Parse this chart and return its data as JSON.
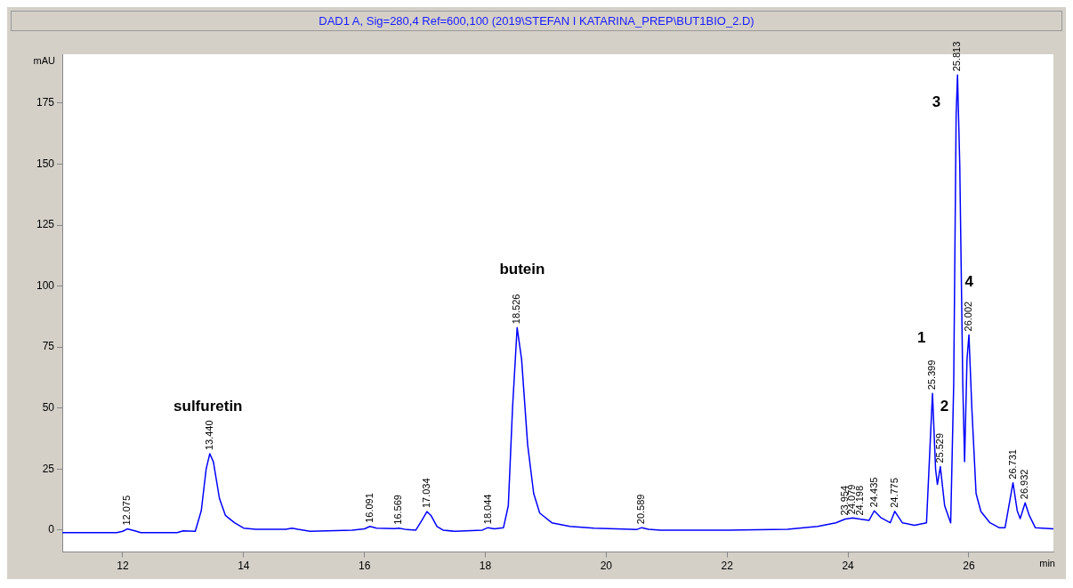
{
  "chart_data": {
    "type": "line",
    "title": "DAD1 A, Sig=280,4 Ref=600,100 (2019\\STEFAN I KATARINA_PREP\\BUT1BIO_2.D)",
    "xlabel": "min",
    "ylabel": "mAU",
    "xlim": [
      11,
      27.4
    ],
    "xticks": [
      12,
      14,
      16,
      18,
      20,
      22,
      24,
      26
    ],
    "ylim": [
      -9,
      195
    ],
    "yticks": [
      0,
      25,
      50,
      75,
      100,
      125,
      150,
      175
    ],
    "grid": false,
    "legend": false,
    "marker": "none",
    "line_style": "solid",
    "annotations": [
      "sulfuretin",
      "butein",
      "1",
      "2",
      "3",
      "4",
      {
        "text": "12.075",
        "x": 12.075,
        "y": 0.5
      },
      {
        "text": "13.440",
        "x": 13.44,
        "y": 31.3
      },
      {
        "text": "16.091",
        "x": 16.091,
        "y": 1.5
      },
      {
        "text": "16.569",
        "x": 16.569,
        "y": 0.8
      },
      {
        "text": "17.034",
        "x": 17.034,
        "y": 7.6
      },
      {
        "text": "18.044",
        "x": 18.044,
        "y": 1
      },
      {
        "text": "18.526",
        "x": 18.526,
        "y": 83
      },
      {
        "text": "20.589",
        "x": 20.589,
        "y": 1
      },
      {
        "text": "23.954",
        "x": 23.954,
        "y": 4.5
      },
      {
        "text": "24.079",
        "x": 24.079,
        "y": 5
      },
      {
        "text": "24.198",
        "x": 24.198,
        "y": 4.5
      },
      {
        "text": "24.435",
        "x": 24.435,
        "y": 7.9
      },
      {
        "text": "24.775",
        "x": 24.775,
        "y": 7.7
      },
      {
        "text": "25.399",
        "x": 25.399,
        "y": 56
      },
      {
        "text": "25.529",
        "x": 25.529,
        "y": 26
      },
      {
        "text": "25.813",
        "x": 25.813,
        "y": 186.5
      },
      {
        "text": "26.002",
        "x": 26.002,
        "y": 80
      },
      {
        "text": "26.731",
        "x": 26.731,
        "y": 19.4
      },
      {
        "text": "26.932",
        "x": 26.932,
        "y": 11.2
      }
    ],
    "series": [
      {
        "color": "#0000ff",
        "x": [
          11.0,
          11.9,
          12.0,
          12.075,
          12.2,
          12.3,
          12.9,
          13.0,
          13.2,
          13.3,
          13.38,
          13.44,
          13.5,
          13.6,
          13.7,
          13.85,
          14.0,
          14.2,
          14.7,
          14.8,
          14.9,
          15.1,
          15.8,
          16.0,
          16.091,
          16.2,
          16.5,
          16.569,
          16.7,
          16.85,
          16.95,
          17.034,
          17.1,
          17.2,
          17.3,
          17.5,
          17.95,
          18.044,
          18.15,
          18.3,
          18.38,
          18.45,
          18.526,
          18.6,
          18.7,
          18.8,
          18.9,
          19.1,
          19.4,
          19.8,
          20.4,
          20.5,
          20.589,
          20.7,
          20.9,
          22.0,
          23.0,
          23.5,
          23.8,
          23.954,
          24.079,
          24.198,
          24.35,
          24.435,
          24.55,
          24.7,
          24.775,
          24.9,
          25.1,
          25.3,
          25.35,
          25.399,
          25.45,
          25.48,
          25.529,
          25.6,
          25.7,
          25.75,
          25.79,
          25.813,
          25.85,
          25.9,
          25.93,
          25.97,
          26.002,
          26.05,
          26.12,
          26.2,
          26.35,
          26.5,
          26.6,
          26.731,
          26.8,
          26.85,
          26.932,
          27.0,
          27.1,
          27.4
        ],
        "values": [
          -1,
          -1,
          -0.5,
          0.5,
          -0.3,
          -1,
          -1,
          -0.3,
          -0.5,
          8,
          25,
          31.3,
          28,
          13,
          6,
          3,
          0.8,
          0.3,
          0.3,
          0.8,
          0.3,
          -0.5,
          0,
          0.5,
          1.5,
          0.8,
          0.6,
          0.8,
          0.2,
          0,
          4,
          7.6,
          6,
          1.5,
          0,
          -0.5,
          0,
          1,
          0.5,
          1,
          10,
          50,
          83,
          70,
          35,
          15,
          7,
          3,
          1.5,
          0.8,
          0.3,
          0.2,
          1,
          0.3,
          0,
          0,
          0.3,
          1.5,
          3,
          4.5,
          5,
          4.5,
          4,
          7.9,
          5,
          3,
          7.7,
          3,
          2,
          3,
          30,
          56,
          25,
          18.7,
          26,
          10,
          3,
          60,
          170,
          186.5,
          150,
          60,
          28,
          70,
          80,
          50,
          15,
          7.6,
          3,
          1,
          1,
          19.4,
          8,
          4.7,
          11.2,
          6,
          1,
          0.5
        ]
      }
    ]
  }
}
